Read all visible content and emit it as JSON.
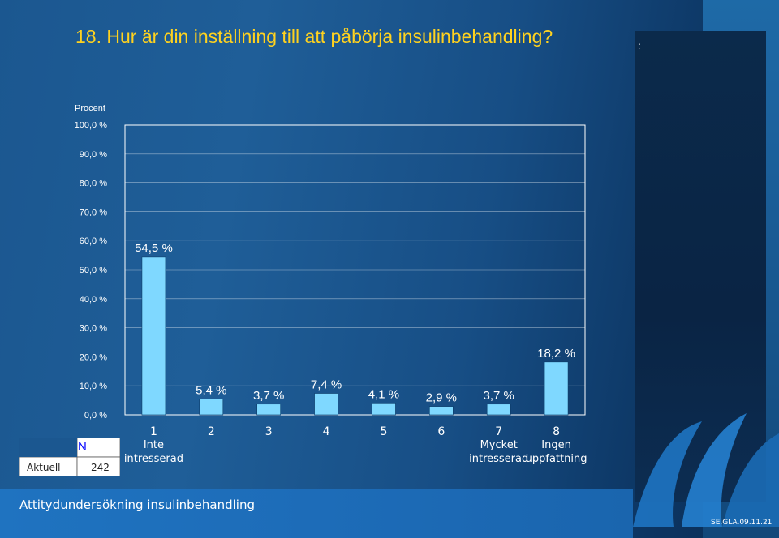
{
  "slide": {
    "title": "18. Hur är din inställning till att påbörja insulinbehandling?",
    "corner_mark": ":",
    "footer_text": "Attitydundersökning insulinbehandling",
    "footer_code": "SE.GLA.09.11.21"
  },
  "n_table": {
    "header": "N",
    "row_label": "Aktuell",
    "value": "242"
  },
  "colors": {
    "bar": "#7fd8ff",
    "title": "#ffd21f",
    "plot_border": "#ffffff"
  },
  "chart_data": {
    "type": "bar",
    "ylabel": "Procent",
    "ylim": [
      0,
      100
    ],
    "yticks": [
      "0,0 %",
      "10,0 %",
      "20,0 %",
      "30,0 %",
      "40,0 %",
      "50,0 %",
      "60,0 %",
      "70,0 %",
      "80,0 %",
      "90,0 %",
      "100,0 %"
    ],
    "categories": [
      "1",
      "2",
      "3",
      "4",
      "5",
      "6",
      "7",
      "8"
    ],
    "category_sublabels": [
      "Inte intresserad",
      "",
      "",
      "",
      "",
      "",
      "Mycket intresserad",
      "Ingen uppfattning"
    ],
    "values": [
      54.5,
      5.4,
      3.7,
      7.4,
      4.1,
      2.9,
      3.7,
      18.2
    ],
    "data_labels": [
      "54,5 %",
      "5,4 %",
      "3,7 %",
      "7,4 %",
      "4,1 %",
      "2,9 %",
      "3,7 %",
      "18,2 %"
    ],
    "grid": true,
    "legend": "none"
  }
}
